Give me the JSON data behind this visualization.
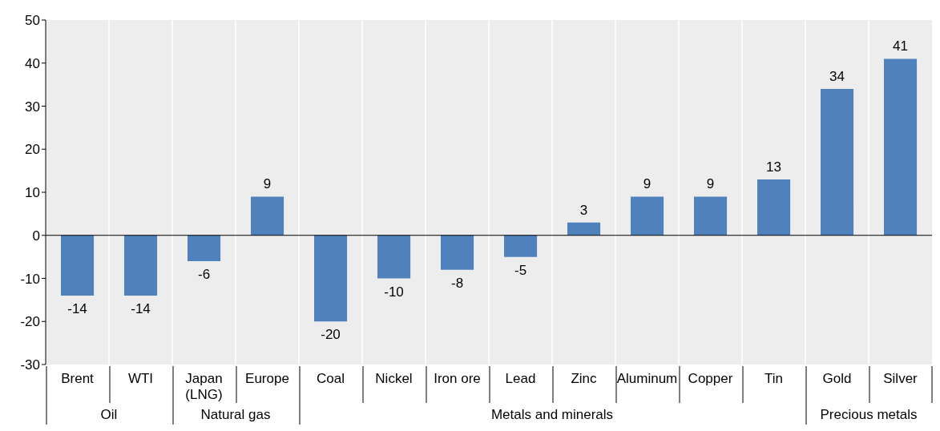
{
  "chart_data": {
    "type": "bar",
    "categories": [
      "Brent",
      "WTI",
      "Japan (LNG)",
      "Europe",
      "Coal",
      "Nickel",
      "Iron ore",
      "Lead",
      "Zinc",
      "Aluminum",
      "Copper",
      "Tin",
      "Gold",
      "Silver"
    ],
    "values": [
      -14,
      -14,
      -6,
      9,
      -20,
      -10,
      -8,
      -5,
      3,
      9,
      9,
      13,
      34,
      41
    ],
    "color": "#4f81bd",
    "ylim": [
      -30,
      50
    ],
    "yticks": [
      -30,
      -20,
      -10,
      0,
      10,
      20,
      30,
      40,
      50
    ],
    "data_labels": true,
    "annotations": [
      "Oil",
      "Natural gas",
      "Metals and minerals",
      "Precious metals"
    ]
  }
}
